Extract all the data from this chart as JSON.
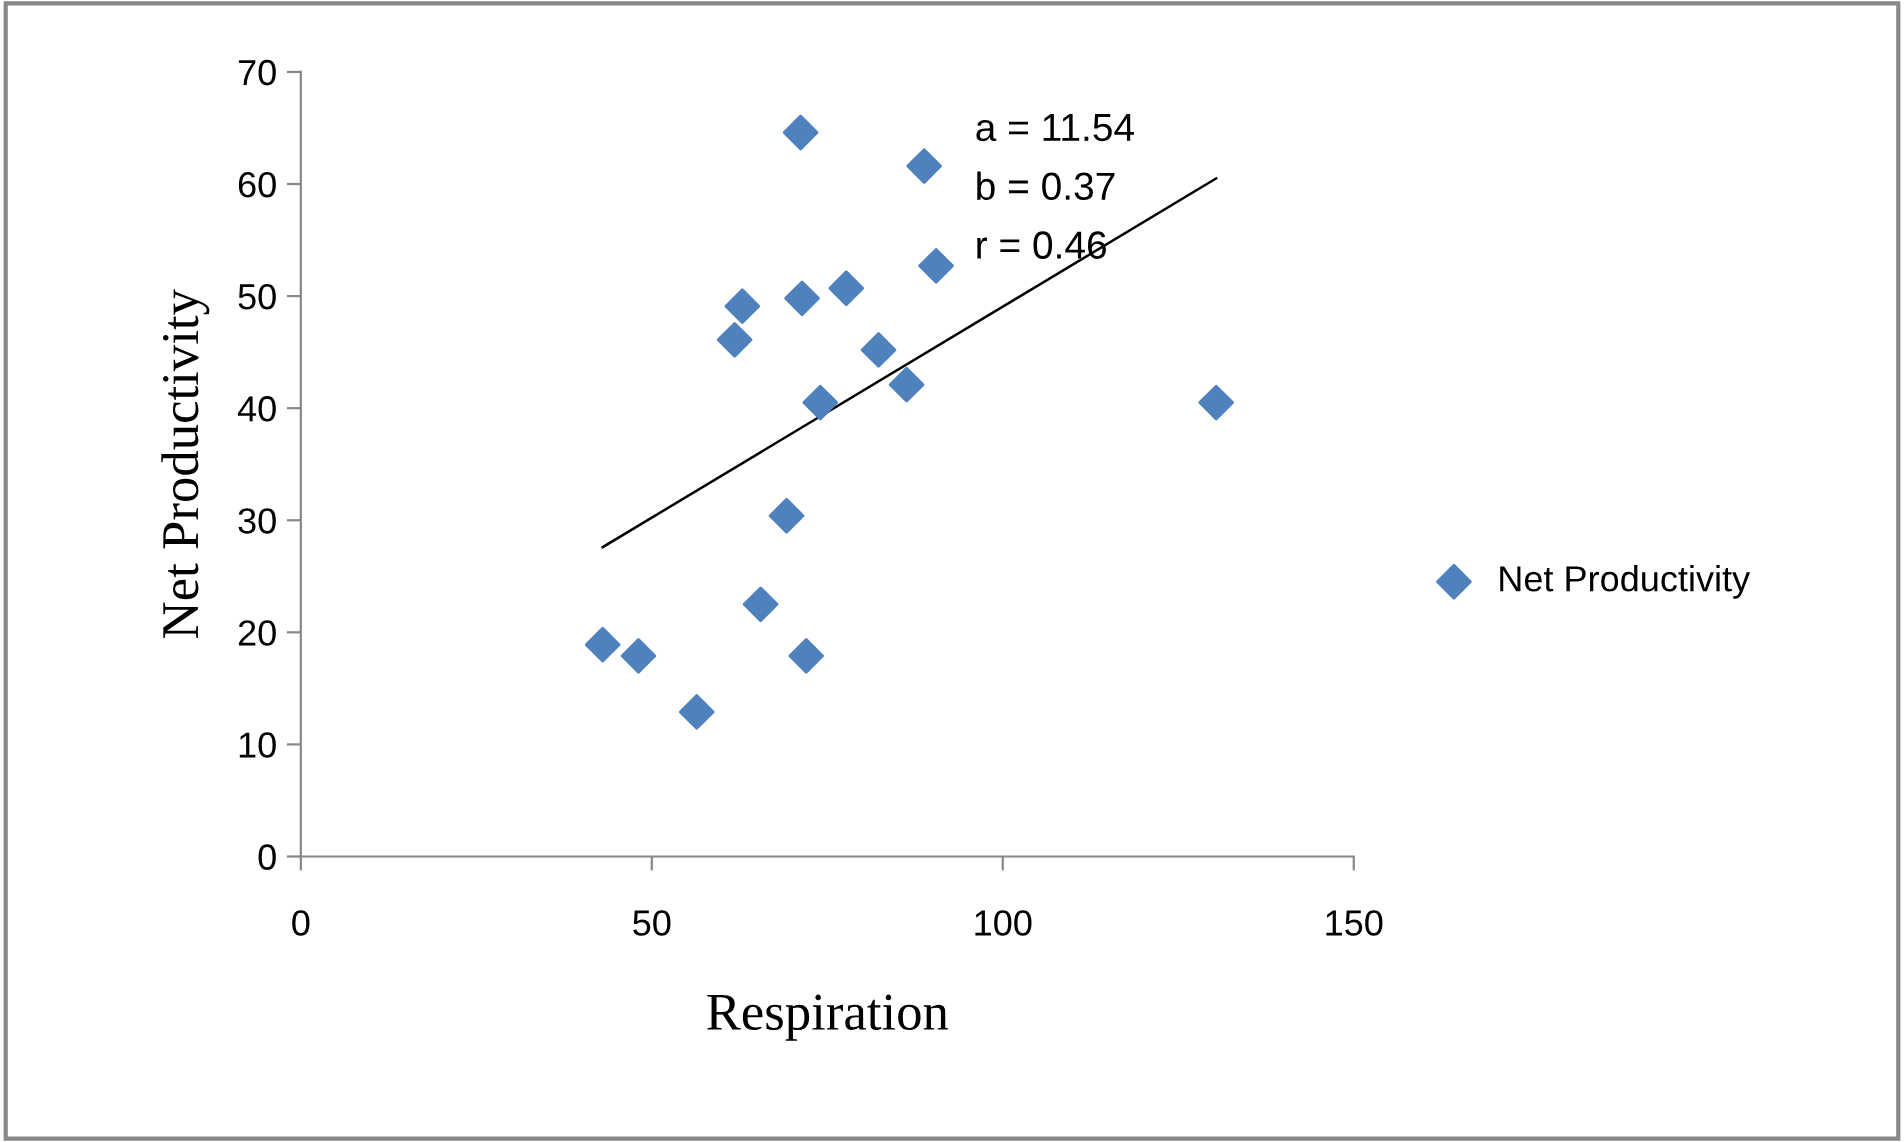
{
  "chart_data": {
    "type": "scatter",
    "xlabel": "Respiration",
    "ylabel": "Net Productivity",
    "series": [
      {
        "name": "Net Productivity",
        "color": "#4f81bd",
        "marker": "diamond",
        "x": [
          43.0,
          48.1,
          56.4,
          61.8,
          62.9,
          65.5,
          69.2,
          71.2,
          71.4,
          72.0,
          74.0,
          77.7,
          82.3,
          86.3,
          88.8,
          90.5,
          130.4
        ],
        "values": [
          18.9,
          17.9,
          12.9,
          46.1,
          49.1,
          22.5,
          30.4,
          64.6,
          49.8,
          17.9,
          40.5,
          50.7,
          45.2,
          42.1,
          61.6,
          52.7,
          40.5
        ]
      },
      {
        "type": "line",
        "color": "#000000",
        "x": [
          43.0,
          130.4
        ],
        "values": [
          27.6,
          60.5
        ]
      }
    ],
    "annotations": [
      "a = 11.54",
      "b = 0.37",
      "r = 0.46"
    ],
    "xlim": [
      0,
      150
    ],
    "xticks": [
      0,
      50,
      100,
      150
    ],
    "ylim": [
      0,
      70
    ],
    "yticks": [
      0,
      10,
      20,
      30,
      40,
      50,
      60,
      70
    ],
    "grid": false,
    "legend": "right"
  }
}
